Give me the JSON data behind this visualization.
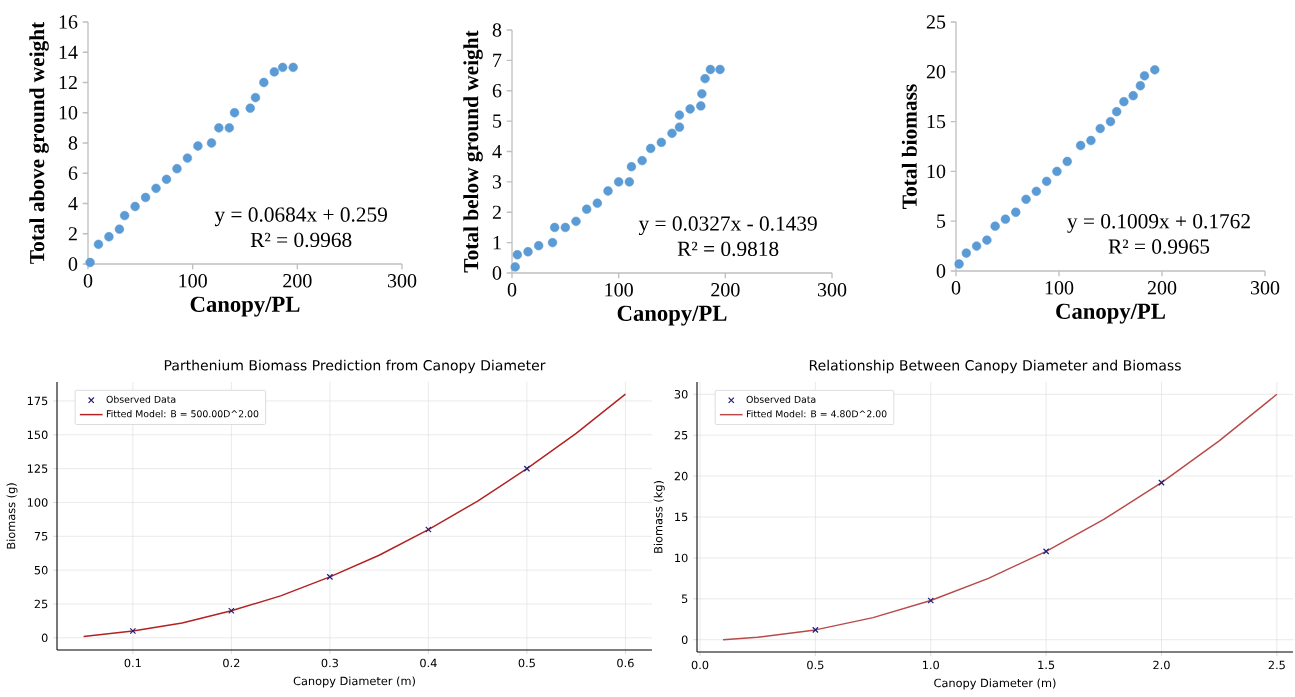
{
  "chart_data": [
    {
      "type": "scatter",
      "xlabel": "Canopy/PL",
      "ylabel": "Total  above ground weight",
      "xlim": [
        0,
        300
      ],
      "xticks": [
        0,
        100,
        200,
        300
      ],
      "ylim": [
        0,
        16
      ],
      "yticks": [
        0,
        2,
        4,
        6,
        8,
        10,
        12,
        14,
        16
      ],
      "marker": "circle",
      "annotations": [
        "y = 0.0684x + 0.259",
        "R² = 0.9968"
      ],
      "series": [
        {
          "color": "#5b9bd5",
          "x": [
            2,
            10,
            20,
            30,
            35,
            45,
            55,
            65,
            75,
            85,
            95,
            105,
            118,
            125,
            135,
            140,
            155,
            160,
            168,
            178,
            186,
            196
          ],
          "values": [
            0.1,
            1.3,
            1.8,
            2.3,
            3.2,
            3.8,
            4.4,
            5.0,
            5.6,
            6.3,
            7.0,
            7.8,
            8.0,
            9.0,
            9.0,
            10.0,
            10.3,
            11.0,
            12.0,
            12.7,
            13.0,
            13.0
          ]
        }
      ]
    },
    {
      "type": "scatter",
      "xlabel": "Canopy/PL",
      "ylabel": "Total below ground weight",
      "xlim": [
        0,
        300
      ],
      "xticks": [
        0,
        100,
        200,
        300
      ],
      "ylim": [
        0,
        8
      ],
      "yticks": [
        0,
        1,
        2,
        3,
        4,
        5,
        6,
        7,
        8
      ],
      "marker": "circle",
      "annotations": [
        "y = 0.0327x - 0.1439",
        "R² = 0.9818"
      ],
      "series": [
        {
          "color": "#5b9bd5",
          "x": [
            3,
            5,
            15,
            25,
            38,
            40,
            50,
            60,
            70,
            80,
            90,
            100,
            110,
            112,
            122,
            130,
            140,
            150,
            157,
            157,
            167,
            177,
            178,
            181,
            186,
            195
          ],
          "values": [
            0.2,
            0.6,
            0.7,
            0.9,
            1.0,
            1.5,
            1.5,
            1.7,
            2.1,
            2.3,
            2.7,
            3.0,
            3.0,
            3.5,
            3.7,
            4.1,
            4.3,
            4.6,
            4.8,
            5.2,
            5.4,
            5.5,
            5.9,
            6.4,
            6.7,
            6.7
          ]
        }
      ]
    },
    {
      "type": "scatter",
      "xlabel": "Canopy/PL",
      "ylabel": "Total biomass",
      "xlim": [
        0,
        300
      ],
      "xticks": [
        0,
        100,
        200,
        300
      ],
      "ylim": [
        0,
        25
      ],
      "yticks": [
        0,
        5,
        10,
        15,
        20,
        25
      ],
      "marker": "circle",
      "annotations": [
        "y = 0.1009x + 0.1762",
        "R² = 0.9965"
      ],
      "series": [
        {
          "color": "#5b9bd5",
          "x": [
            3,
            10,
            20,
            30,
            38,
            48,
            58,
            68,
            78,
            88,
            98,
            108,
            121,
            131,
            140,
            150,
            156,
            163,
            172,
            179,
            183,
            193
          ],
          "values": [
            0.7,
            1.8,
            2.5,
            3.1,
            4.5,
            5.2,
            5.9,
            7.2,
            8.0,
            9.0,
            10.0,
            11.0,
            12.6,
            13.1,
            14.3,
            15.0,
            16.0,
            17.0,
            17.6,
            18.6,
            19.6,
            20.2
          ]
        }
      ]
    },
    {
      "type": "scatter",
      "title": "Parthenium Biomass Prediction from Canopy Diameter",
      "xlabel": "Canopy Diameter (m)",
      "ylabel": "Biomass (g)",
      "xlim": [
        0.023,
        0.627
      ],
      "xticks": [
        0.1,
        0.2,
        0.3,
        0.4,
        0.5,
        0.6
      ],
      "ylim": [
        -9,
        189
      ],
      "yticks": [
        0,
        25,
        50,
        75,
        100,
        125,
        150,
        175
      ],
      "grid": true,
      "legend": "top left",
      "series": [
        {
          "name": "Observed Data",
          "color": "#1f1f7a",
          "marker": "cross",
          "x": [
            0.1,
            0.2,
            0.3,
            0.4,
            0.5
          ],
          "values": [
            5,
            20,
            45,
            80,
            125
          ]
        },
        {
          "name": "Fitted Model: B = 500.00D^2.00",
          "type": "line",
          "marker": "none",
          "color": "#b22222",
          "x": [
            0.05,
            0.1,
            0.15,
            0.2,
            0.25,
            0.3,
            0.35,
            0.4,
            0.45,
            0.5,
            0.55,
            0.6
          ],
          "values": [
            1,
            5,
            11,
            20,
            31,
            45,
            61,
            80,
            101,
            125,
            151,
            180
          ]
        }
      ]
    },
    {
      "type": "scatter",
      "title": "Relationship Between Canopy Diameter and Biomass",
      "xlabel": "Canopy Diameter (m)",
      "ylabel": "Biomass (kg)",
      "xlim": [
        -0.013,
        2.57
      ],
      "xticks": [
        {
          "value": 0,
          "label": "0.0"
        },
        0.5,
        {
          "value": 1,
          "label": "1.0"
        },
        1.5,
        {
          "value": 2,
          "label": "2.0"
        },
        2.5
      ],
      "ylim": [
        -1.5,
        31.5
      ],
      "yticks": [
        0,
        5,
        10,
        15,
        20,
        25,
        30
      ],
      "grid": true,
      "legend": "top left",
      "series": [
        {
          "name": "Observed Data",
          "color": "#1f1f7a",
          "marker": "cross",
          "x": [
            0.5,
            1.0,
            1.5,
            2.0
          ],
          "values": [
            1.2,
            4.8,
            10.8,
            19.2
          ]
        },
        {
          "name": "Fitted Model: B = 4.80D^2.00",
          "type": "line",
          "marker": "none",
          "color": "#b84a4a",
          "x": [
            0.1,
            0.25,
            0.5,
            0.75,
            1.0,
            1.25,
            1.5,
            1.75,
            2.0,
            2.25,
            2.5
          ],
          "values": [
            0,
            0.3,
            1.2,
            2.7,
            4.8,
            7.5,
            10.8,
            14.7,
            19.2,
            24.3,
            30
          ]
        }
      ]
    }
  ]
}
